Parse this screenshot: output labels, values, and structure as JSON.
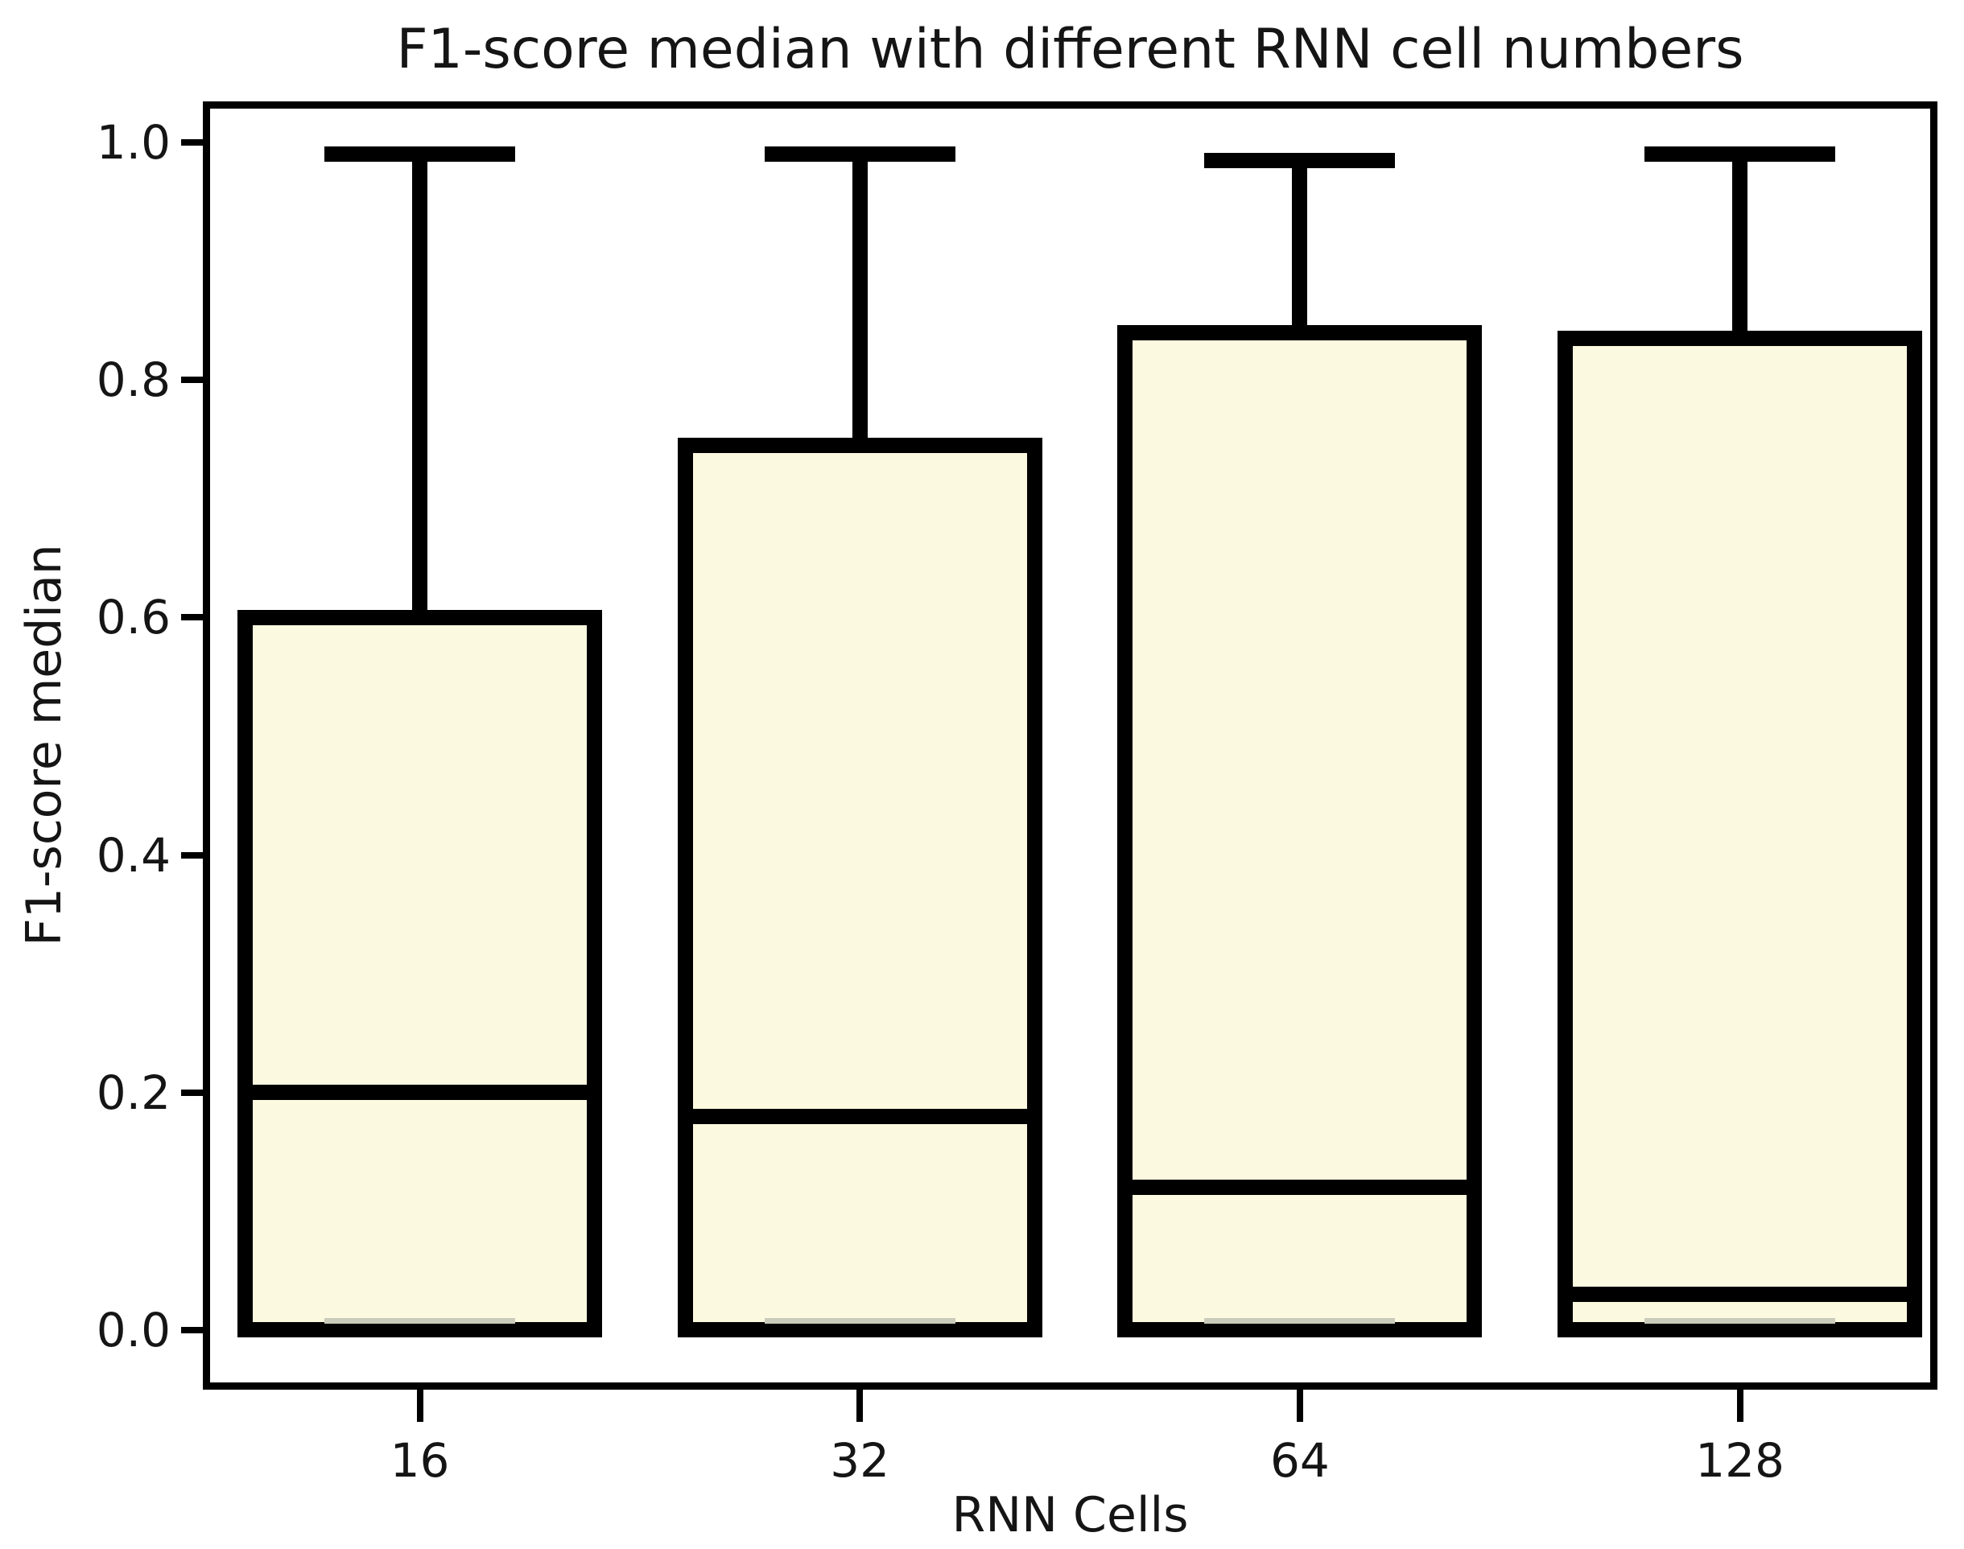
{
  "title": "F1-score median with different RNN cell numbers",
  "colors": {
    "box_fill": "#FBF9DF",
    "box_line": "#000000",
    "lower_cap_line": "#C9CCBA",
    "text": "#151515",
    "background": "#FFFFFF"
  },
  "chart_data": {
    "type": "boxplot",
    "title": "F1-score median with different RNN cell numbers",
    "xlabel": "RNN Cells",
    "ylabel": "F1-score median",
    "categories": [
      "16",
      "32",
      "64",
      "128"
    ],
    "yticks": [
      0.0,
      0.2,
      0.4,
      0.6,
      0.8,
      1.0
    ],
    "ytick_labels": [
      "0.0",
      "0.2",
      "0.4",
      "0.6",
      "0.8",
      "1.0"
    ],
    "ylim": [
      -0.05,
      1.035
    ],
    "grid": false,
    "legend": false,
    "boxes": [
      {
        "category": "16",
        "whisker_low": 0.0,
        "q1": 0.0,
        "median": 0.2,
        "q3": 0.6,
        "whisker_high": 0.99
      },
      {
        "category": "32",
        "whisker_low": 0.0,
        "q1": 0.0,
        "median": 0.18,
        "q3": 0.745,
        "whisker_high": 0.99
      },
      {
        "category": "64",
        "whisker_low": 0.0,
        "q1": 0.0,
        "median": 0.12,
        "q3": 0.84,
        "whisker_high": 0.985
      },
      {
        "category": "128",
        "whisker_low": 0.0,
        "q1": 0.0,
        "median": 0.03,
        "q3": 0.835,
        "whisker_high": 0.99
      }
    ]
  }
}
